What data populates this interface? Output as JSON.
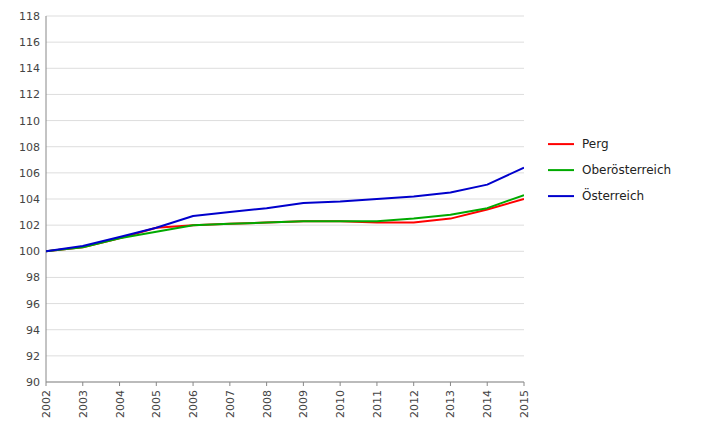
{
  "chart_data": {
    "type": "line",
    "x": [
      2002,
      2003,
      2004,
      2005,
      2006,
      2007,
      2008,
      2009,
      2010,
      2011,
      2012,
      2013,
      2014,
      2015
    ],
    "series": [
      {
        "name": "Perg",
        "color": "#ff0000",
        "values": [
          100.0,
          100.3,
          101.0,
          101.8,
          102.0,
          102.1,
          102.2,
          102.3,
          102.3,
          102.2,
          102.2,
          102.5,
          103.2,
          104.0
        ]
      },
      {
        "name": "Oberösterreich",
        "color": "#00aa00",
        "values": [
          100.0,
          100.3,
          101.0,
          101.5,
          102.0,
          102.1,
          102.2,
          102.3,
          102.3,
          102.3,
          102.5,
          102.8,
          103.3,
          104.3
        ]
      },
      {
        "name": "Österreich",
        "color": "#0000cc",
        "values": [
          100.0,
          100.4,
          101.1,
          101.8,
          102.7,
          103.0,
          103.3,
          103.7,
          103.8,
          104.0,
          104.2,
          104.5,
          105.1,
          106.4
        ]
      }
    ],
    "xlim": [
      2002,
      2015
    ],
    "xticks": [
      2002,
      2003,
      2004,
      2005,
      2006,
      2007,
      2008,
      2009,
      2010,
      2011,
      2012,
      2013,
      2014,
      2015
    ],
    "ylim": [
      90,
      118
    ],
    "yticks": [
      90,
      92,
      94,
      96,
      98,
      100,
      102,
      104,
      106,
      108,
      110,
      112,
      114,
      116,
      118
    ],
    "grid": true,
    "legend": "right"
  }
}
